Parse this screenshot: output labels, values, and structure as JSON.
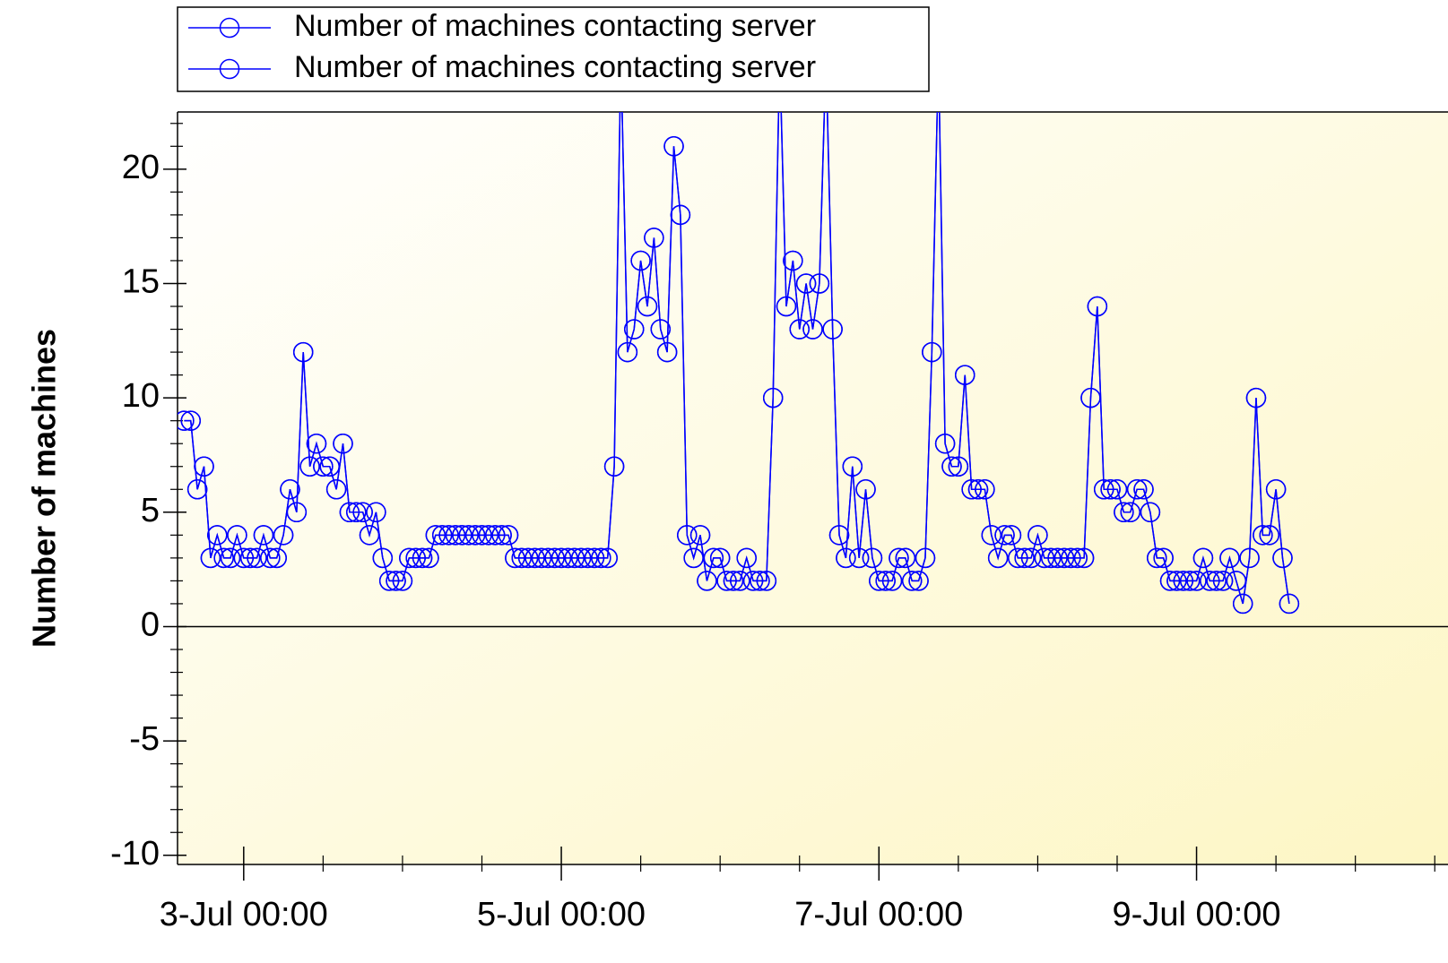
{
  "chart_data": {
    "type": "line",
    "ylabel": "Number of machines",
    "xlim": [
      "2-Jul 14:00",
      "10-Jul 14:00"
    ],
    "xticks": [
      "3-Jul 00:00",
      "5-Jul 00:00",
      "7-Jul 00:00",
      "9-Jul 00:00"
    ],
    "ylim": [
      -10.4,
      22.5
    ],
    "yticks": [
      -10,
      -5,
      0,
      5,
      10,
      15,
      20
    ],
    "legend": "top-left",
    "x": [
      "2-Jul 15:00",
      "2-Jul 16:00",
      "2-Jul 17:00",
      "2-Jul 18:00",
      "2-Jul 19:00",
      "2-Jul 20:00",
      "2-Jul 21:00",
      "2-Jul 22:00",
      "2-Jul 23:00",
      "3-Jul 00:00",
      "3-Jul 01:00",
      "3-Jul 02:00",
      "3-Jul 03:00",
      "3-Jul 04:00",
      "3-Jul 05:00",
      "3-Jul 06:00",
      "3-Jul 07:00",
      "3-Jul 08:00",
      "3-Jul 09:00",
      "3-Jul 10:00",
      "3-Jul 11:00",
      "3-Jul 12:00",
      "3-Jul 13:00",
      "3-Jul 14:00",
      "3-Jul 15:00",
      "3-Jul 16:00",
      "3-Jul 17:00",
      "3-Jul 18:00",
      "3-Jul 19:00",
      "3-Jul 20:00",
      "3-Jul 21:00",
      "3-Jul 22:00",
      "3-Jul 23:00",
      "4-Jul 00:00",
      "4-Jul 01:00",
      "4-Jul 02:00",
      "4-Jul 03:00",
      "4-Jul 04:00",
      "4-Jul 05:00",
      "4-Jul 06:00",
      "4-Jul 07:00",
      "4-Jul 08:00",
      "4-Jul 09:00",
      "4-Jul 10:00",
      "4-Jul 11:00",
      "4-Jul 12:00",
      "4-Jul 13:00",
      "4-Jul 14:00",
      "4-Jul 15:00",
      "4-Jul 16:00",
      "4-Jul 17:00",
      "4-Jul 18:00",
      "4-Jul 19:00",
      "4-Jul 20:00",
      "4-Jul 21:00",
      "4-Jul 22:00",
      "4-Jul 23:00",
      "5-Jul 00:00",
      "5-Jul 01:00",
      "5-Jul 02:00",
      "5-Jul 03:00",
      "5-Jul 04:00",
      "5-Jul 05:00",
      "5-Jul 06:00",
      "5-Jul 07:00",
      "5-Jul 08:00",
      "5-Jul 09:00",
      "5-Jul 10:00",
      "5-Jul 11:00",
      "5-Jul 12:00",
      "5-Jul 13:00",
      "5-Jul 14:00",
      "5-Jul 15:00",
      "5-Jul 16:00",
      "5-Jul 17:00",
      "5-Jul 18:00",
      "5-Jul 19:00",
      "5-Jul 20:00",
      "5-Jul 21:00",
      "5-Jul 22:00",
      "5-Jul 23:00",
      "6-Jul 00:00",
      "6-Jul 01:00",
      "6-Jul 02:00",
      "6-Jul 03:00",
      "6-Jul 04:00",
      "6-Jul 05:00",
      "6-Jul 06:00",
      "6-Jul 07:00",
      "6-Jul 08:00",
      "6-Jul 09:00",
      "6-Jul 10:00",
      "6-Jul 11:00",
      "6-Jul 12:00",
      "6-Jul 13:00",
      "6-Jul 14:00",
      "6-Jul 15:00",
      "6-Jul 16:00",
      "6-Jul 17:00",
      "6-Jul 18:00",
      "6-Jul 19:00",
      "6-Jul 20:00",
      "6-Jul 21:00",
      "6-Jul 22:00",
      "6-Jul 23:00",
      "7-Jul 00:00",
      "7-Jul 01:00",
      "7-Jul 02:00",
      "7-Jul 03:00",
      "7-Jul 04:00",
      "7-Jul 05:00",
      "7-Jul 06:00",
      "7-Jul 07:00",
      "7-Jul 08:00",
      "7-Jul 09:00",
      "7-Jul 10:00",
      "7-Jul 11:00",
      "7-Jul 12:00",
      "7-Jul 13:00",
      "7-Jul 14:00",
      "7-Jul 15:00",
      "7-Jul 16:00",
      "7-Jul 17:00",
      "7-Jul 18:00",
      "7-Jul 19:00",
      "7-Jul 20:00",
      "7-Jul 21:00",
      "7-Jul 22:00",
      "7-Jul 23:00",
      "8-Jul 00:00",
      "8-Jul 01:00",
      "8-Jul 02:00",
      "8-Jul 03:00",
      "8-Jul 04:00",
      "8-Jul 05:00",
      "8-Jul 06:00",
      "8-Jul 07:00",
      "8-Jul 08:00",
      "8-Jul 09:00",
      "8-Jul 10:00",
      "8-Jul 11:00",
      "8-Jul 12:00",
      "8-Jul 13:00",
      "8-Jul 14:00",
      "8-Jul 15:00",
      "8-Jul 16:00",
      "8-Jul 17:00",
      "8-Jul 18:00",
      "8-Jul 19:00",
      "8-Jul 20:00",
      "8-Jul 21:00",
      "8-Jul 22:00",
      "8-Jul 23:00",
      "9-Jul 00:00",
      "9-Jul 01:00",
      "9-Jul 02:00",
      "9-Jul 03:00",
      "9-Jul 04:00",
      "9-Jul 05:00",
      "9-Jul 06:00",
      "9-Jul 07:00",
      "9-Jul 08:00",
      "9-Jul 09:00",
      "9-Jul 10:00",
      "9-Jul 11:00",
      "9-Jul 12:00",
      "9-Jul 13:00",
      "9-Jul 14:00"
    ],
    "series": [
      {
        "name": "Number of machines contacting server",
        "color": "#0000ff",
        "values": [
          9,
          9,
          6,
          7,
          3,
          4,
          3,
          3,
          4,
          3,
          3,
          3,
          4,
          3,
          3,
          4,
          6,
          5,
          12,
          7,
          8,
          7,
          7,
          6,
          8,
          5,
          5,
          5,
          4,
          5,
          3,
          2,
          2,
          2,
          3,
          3,
          3,
          3,
          4,
          4,
          4,
          4,
          4,
          4,
          4,
          4,
          4,
          4,
          4,
          4,
          3,
          3,
          3,
          3,
          3,
          3,
          3,
          3,
          3,
          3,
          3,
          3,
          3,
          3,
          3,
          7,
          25,
          12,
          13,
          16,
          14,
          17,
          13,
          12,
          21,
          18,
          4,
          3,
          4,
          2,
          3,
          3,
          2,
          2,
          2,
          3,
          2,
          2,
          2,
          10,
          25,
          14,
          16,
          13,
          15,
          13,
          15,
          25,
          13,
          4,
          3,
          7,
          3,
          6,
          3,
          2,
          2,
          2,
          3,
          3,
          2,
          2,
          3,
          12,
          25,
          8,
          7,
          7,
          11,
          6,
          6,
          6,
          4,
          3,
          4,
          4,
          3,
          3,
          3,
          4,
          3,
          3,
          3,
          3,
          3,
          3,
          3,
          10,
          14,
          6,
          6,
          6,
          5,
          5,
          6,
          6,
          5,
          3,
          3,
          2,
          2,
          2,
          2,
          2,
          3,
          2,
          2,
          2,
          3,
          2,
          1,
          3,
          10,
          4,
          4,
          6,
          3,
          1
        ]
      },
      {
        "name": "Number of machines contacting server",
        "color": "#0000ff",
        "values": [
          9,
          9,
          6,
          7,
          3,
          4,
          3,
          3,
          4,
          3,
          3,
          3,
          4,
          3,
          3,
          4,
          6,
          5,
          12,
          7,
          8,
          7,
          7,
          6,
          8,
          5,
          5,
          5,
          4,
          5,
          3,
          2,
          2,
          2,
          3,
          3,
          3,
          3,
          4,
          4,
          4,
          4,
          4,
          4,
          4,
          4,
          4,
          4,
          4,
          4,
          3,
          3,
          3,
          3,
          3,
          3,
          3,
          3,
          3,
          3,
          3,
          3,
          3,
          3,
          3,
          7,
          25,
          12,
          13,
          16,
          14,
          17,
          13,
          12,
          21,
          18,
          4,
          3,
          4,
          2,
          3,
          3,
          2,
          2,
          2,
          3,
          2,
          2,
          2,
          10,
          25,
          14,
          16,
          13,
          15,
          13,
          15,
          25,
          13,
          4,
          3,
          7,
          3,
          6,
          3,
          2,
          2,
          2,
          3,
          3,
          2,
          2,
          3,
          12,
          25,
          8,
          7,
          7,
          11,
          6,
          6,
          6,
          4,
          3,
          4,
          4,
          3,
          3,
          3,
          4,
          3,
          3,
          3,
          3,
          3,
          3,
          3,
          10,
          14,
          6,
          6,
          6,
          5,
          5,
          6,
          6,
          5,
          3,
          3,
          2,
          2,
          2,
          2,
          2,
          3,
          2,
          2,
          2,
          3,
          2,
          1,
          3,
          10,
          4,
          4,
          6,
          3,
          1
        ]
      }
    ]
  }
}
